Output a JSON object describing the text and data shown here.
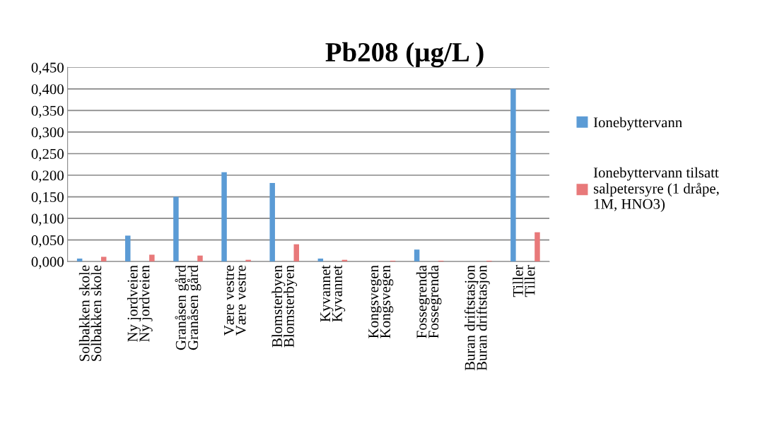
{
  "chart_data": {
    "type": "bar",
    "title": "Pb208 (µg/L )",
    "categories": [
      "Solbakken skole\nSolbakken skole",
      "Ny jordveien\nNy jordveien",
      "Granåsen gård\nGranåsen gård",
      "Være vestre\nVære vestre",
      "Blomsterbyen\nBlomsterbyen",
      "Kyvannet\nKyvannet",
      "Kongsvegen\nKongsvegen",
      "Fossegrenda\nFossegrenda",
      "Buran driftstasjon\nBuran driftstasjon",
      "Tiller\nTiller"
    ],
    "series": [
      {
        "name": "Ionebyttervann",
        "color": "#5b9bd5",
        "values": [
          0.007,
          0.06,
          0.15,
          0.207,
          0.182,
          0.007,
          null,
          0.028,
          null,
          0.4
        ]
      },
      {
        "name": "Ionebyttervann tilsatt\nsalpetersyre (1 dråpe,\n1M, HNO3)",
        "color": "#e8797a",
        "values": [
          0.011,
          0.016,
          0.014,
          0.004,
          0.04,
          0.004,
          0.002,
          0.002,
          0.002,
          0.068
        ]
      }
    ],
    "ylim": [
      0,
      0.45
    ],
    "yticks": [
      {
        "value": 0,
        "label": "0,000"
      },
      {
        "value": 0.05,
        "label": "0,050"
      },
      {
        "value": 0.1,
        "label": "0,100"
      },
      {
        "value": 0.15,
        "label": "0,150"
      },
      {
        "value": 0.2,
        "label": "0,200"
      },
      {
        "value": 0.25,
        "label": "0,250"
      },
      {
        "value": 0.3,
        "label": "0,300"
      },
      {
        "value": 0.35,
        "label": "0,350"
      },
      {
        "value": 0.4,
        "label": "0,400"
      },
      {
        "value": 0.45,
        "label": "0,450"
      }
    ],
    "grid": "y",
    "legend": "right"
  }
}
